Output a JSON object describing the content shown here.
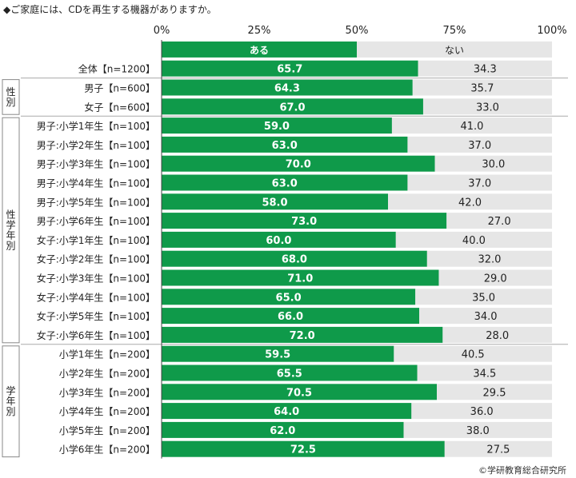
{
  "title": "◆ご家庭には、CDを再生する機器がありますか。",
  "copyright": "©学研教育総合研究所",
  "chart_data": {
    "type": "bar",
    "orientation": "horizontal",
    "stacked": true,
    "xlim": [
      0,
      100
    ],
    "x_ticks": [
      "0%",
      "25%",
      "50%",
      "75%",
      "100%"
    ],
    "series": [
      {
        "name": "ある",
        "color": "#0f9a4a"
      },
      {
        "name": "ない",
        "color": "#e6e6e6"
      }
    ],
    "groups": [
      {
        "label": "",
        "rows": [
          {
            "label": "全体【n=1200】",
            "yes": 65.7,
            "no": 34.3
          }
        ]
      },
      {
        "label": "性別",
        "rows": [
          {
            "label": "男子【n=600】",
            "yes": 64.3,
            "no": 35.7
          },
          {
            "label": "女子【n=600】",
            "yes": 67.0,
            "no": 33.0
          }
        ]
      },
      {
        "label": "性学年別",
        "rows": [
          {
            "label": "男子:小学1年生【n=100】",
            "yes": 59.0,
            "no": 41.0
          },
          {
            "label": "男子:小学2年生【n=100】",
            "yes": 63.0,
            "no": 37.0
          },
          {
            "label": "男子:小学3年生【n=100】",
            "yes": 70.0,
            "no": 30.0
          },
          {
            "label": "男子:小学4年生【n=100】",
            "yes": 63.0,
            "no": 37.0
          },
          {
            "label": "男子:小学5年生【n=100】",
            "yes": 58.0,
            "no": 42.0
          },
          {
            "label": "男子:小学6年生【n=100】",
            "yes": 73.0,
            "no": 27.0
          },
          {
            "label": "女子:小学1年生【n=100】",
            "yes": 60.0,
            "no": 40.0
          },
          {
            "label": "女子:小学2年生【n=100】",
            "yes": 68.0,
            "no": 32.0
          },
          {
            "label": "女子:小学3年生【n=100】",
            "yes": 71.0,
            "no": 29.0
          },
          {
            "label": "女子:小学4年生【n=100】",
            "yes": 65.0,
            "no": 35.0
          },
          {
            "label": "女子:小学5年生【n=100】",
            "yes": 66.0,
            "no": 34.0
          },
          {
            "label": "女子:小学6年生【n=100】",
            "yes": 72.0,
            "no": 28.0
          }
        ]
      },
      {
        "label": "学年別",
        "rows": [
          {
            "label": "小学1年生【n=200】",
            "yes": 59.5,
            "no": 40.5
          },
          {
            "label": "小学2年生【n=200】",
            "yes": 65.5,
            "no": 34.5
          },
          {
            "label": "小学3年生【n=200】",
            "yes": 70.5,
            "no": 29.5
          },
          {
            "label": "小学4年生【n=200】",
            "yes": 64.0,
            "no": 36.0
          },
          {
            "label": "小学5年生【n=200】",
            "yes": 62.0,
            "no": 38.0
          },
          {
            "label": "小学6年生【n=200】",
            "yes": 72.5,
            "no": 27.5
          }
        ]
      }
    ]
  }
}
